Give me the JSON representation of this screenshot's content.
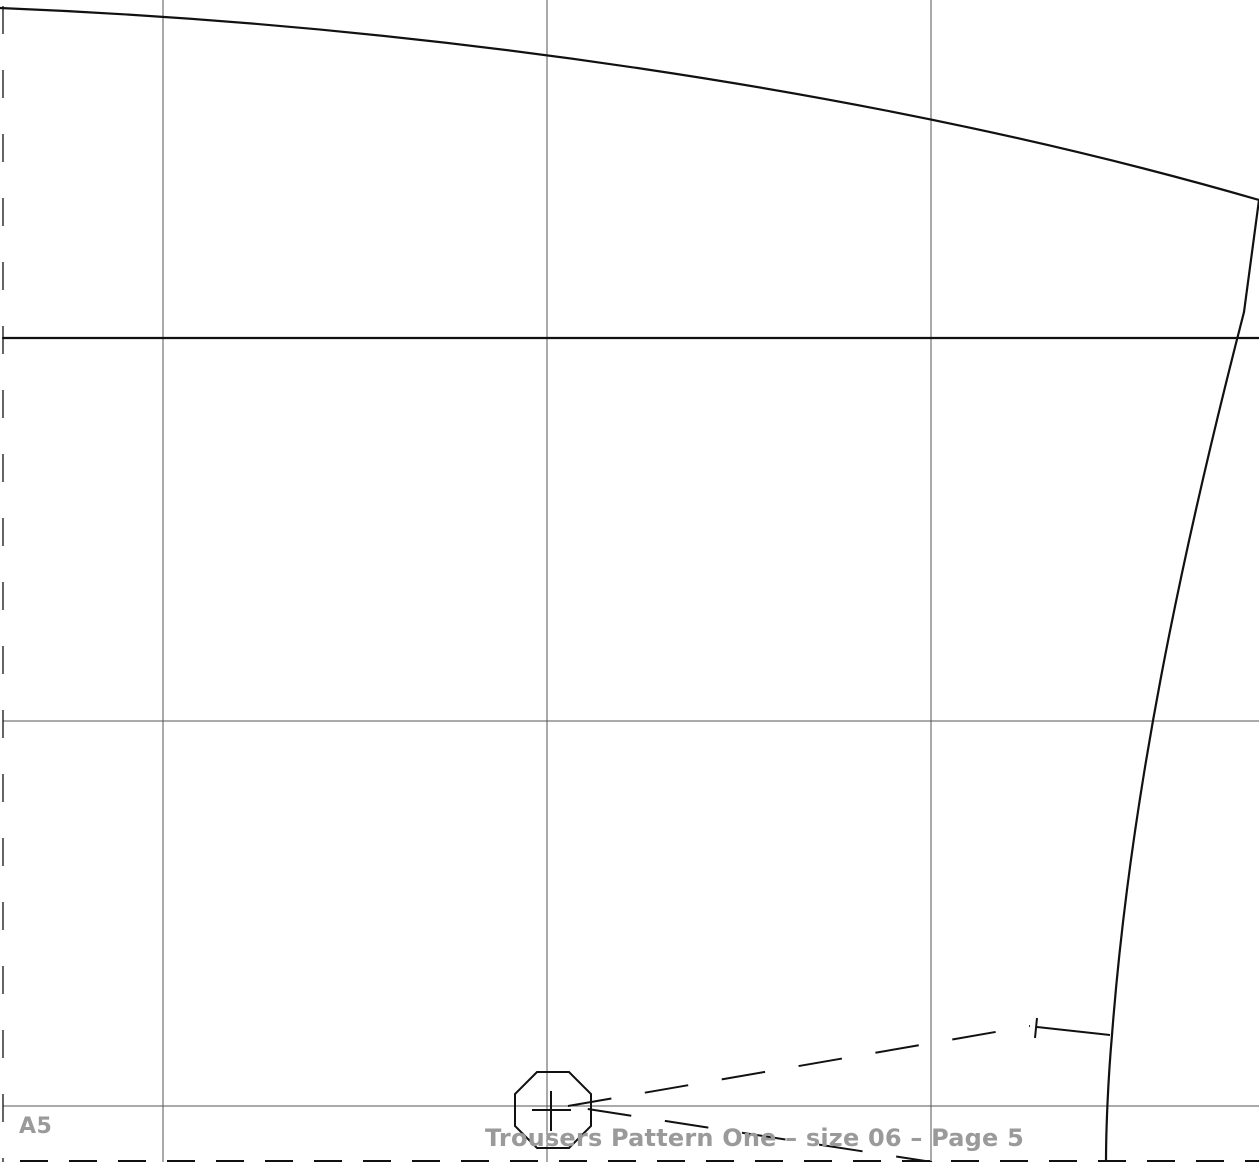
{
  "page": {
    "label": "A5",
    "footer": "Trousers Pattern One – size 06 – Page 5"
  },
  "colors": {
    "pattern_line": "#111111",
    "grid_line": "#555555",
    "page_text": "#9a9a9a",
    "background": "#ffffff"
  },
  "icons": {
    "grainline_marker": "octagon-crosshair-icon",
    "dart_end": "t-bar-icon"
  }
}
